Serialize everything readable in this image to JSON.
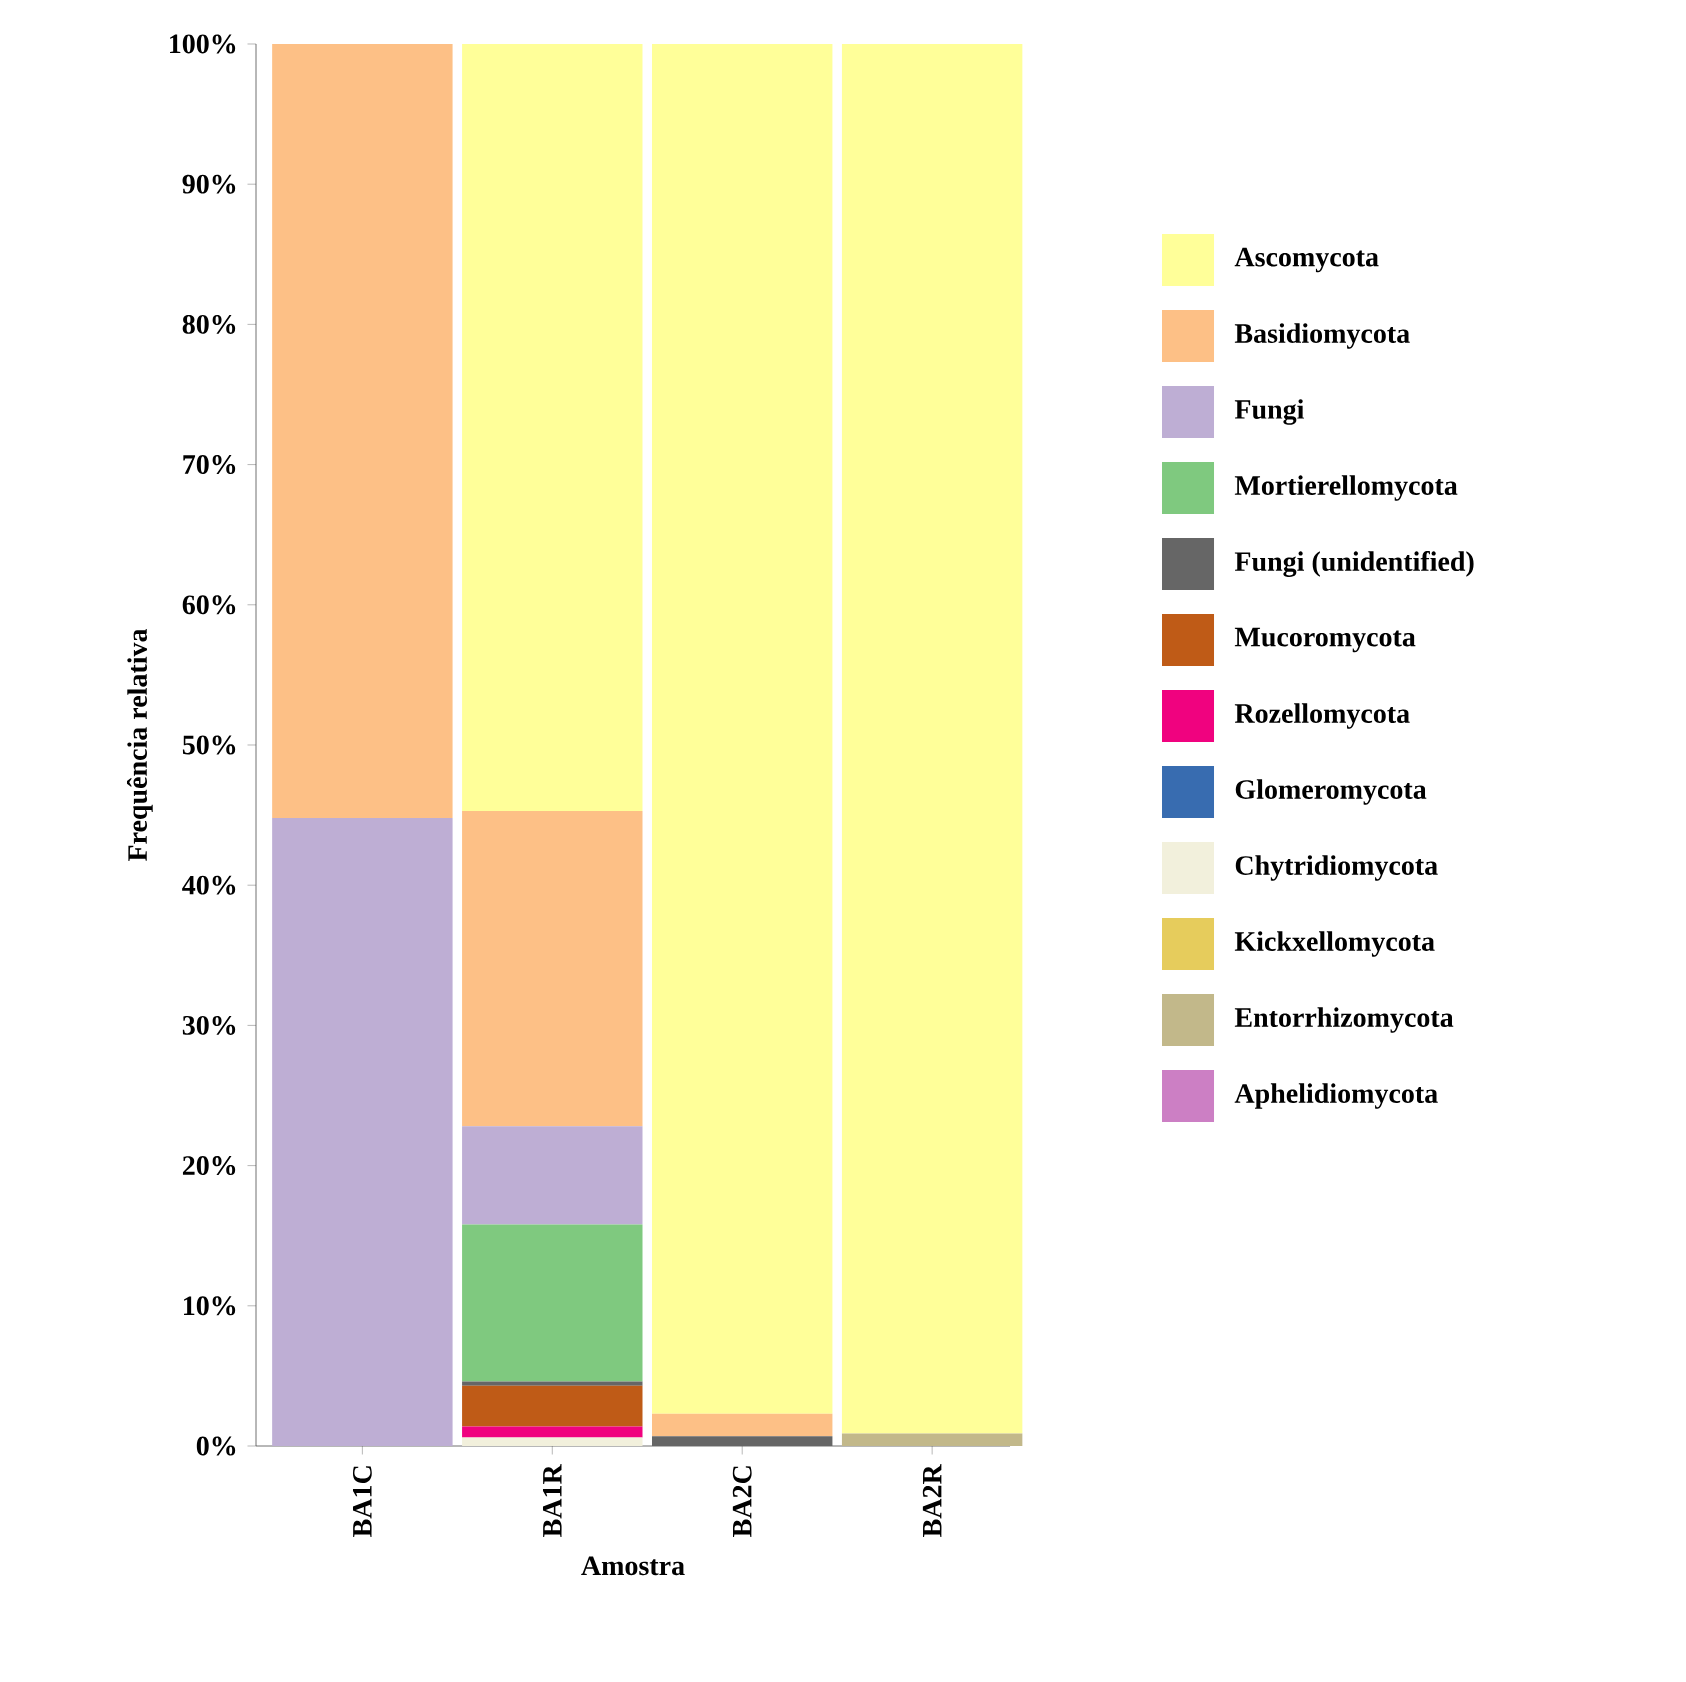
{
  "chart_data": {
    "type": "bar",
    "stacked": true,
    "xlabel": "Amostra",
    "ylabel": "Frequência relativa",
    "categories": [
      "BA1C",
      "BA1R",
      "BA2C",
      "BA2R"
    ],
    "ylim": [
      0,
      100
    ],
    "yticks": [
      {
        "value": 0,
        "label": "0%"
      },
      {
        "value": 10,
        "label": "10%"
      },
      {
        "value": 20,
        "label": "20%"
      },
      {
        "value": 30,
        "label": "30%"
      },
      {
        "value": 40,
        "label": "40%"
      },
      {
        "value": 50,
        "label": "50%"
      },
      {
        "value": 60,
        "label": "60%"
      },
      {
        "value": 70,
        "label": "70%"
      },
      {
        "value": 80,
        "label": "80%"
      },
      {
        "value": 90,
        "label": "90%"
      },
      {
        "value": 100,
        "label": "100%"
      }
    ],
    "legend": "right",
    "grid": false,
    "series": [
      {
        "name": "Aphelidiomycota",
        "color": "#cc7fc4",
        "values": [
          0,
          0,
          0,
          0
        ]
      },
      {
        "name": "Entorrhizomycota",
        "color": "#c2b88a",
        "values": [
          0,
          0,
          0,
          0.9
        ]
      },
      {
        "name": "Kickxellomycota",
        "color": "#e6cc5c",
        "values": [
          0,
          0,
          0,
          0
        ]
      },
      {
        "name": "Chytridiomycota",
        "color": "#f2f0dc",
        "values": [
          0,
          0.6,
          0,
          0
        ]
      },
      {
        "name": "Glomeromycota",
        "color": "#386cb0",
        "values": [
          0,
          0,
          0,
          0
        ]
      },
      {
        "name": "Rozellomycota",
        "color": "#f0027f",
        "values": [
          0,
          0.8,
          0,
          0
        ]
      },
      {
        "name": "Mucoromycota",
        "color": "#bf5b17",
        "values": [
          0,
          2.9,
          0,
          0
        ]
      },
      {
        "name": "Fungi (unidentified)",
        "color": "#666666",
        "values": [
          0,
          0.3,
          0.7,
          0
        ]
      },
      {
        "name": "Mortierellomycota",
        "color": "#7fc97f",
        "values": [
          0,
          11.2,
          0,
          0
        ]
      },
      {
        "name": "Fungi",
        "color": "#beaed4",
        "values": [
          44.8,
          7.0,
          0,
          0
        ]
      },
      {
        "name": "Basidiomycota",
        "color": "#fdc086",
        "values": [
          55.2,
          22.5,
          1.6,
          0
        ]
      },
      {
        "name": "Ascomycota",
        "color": "#ffff99",
        "values": [
          0,
          54.7,
          97.7,
          99.1
        ]
      }
    ]
  }
}
